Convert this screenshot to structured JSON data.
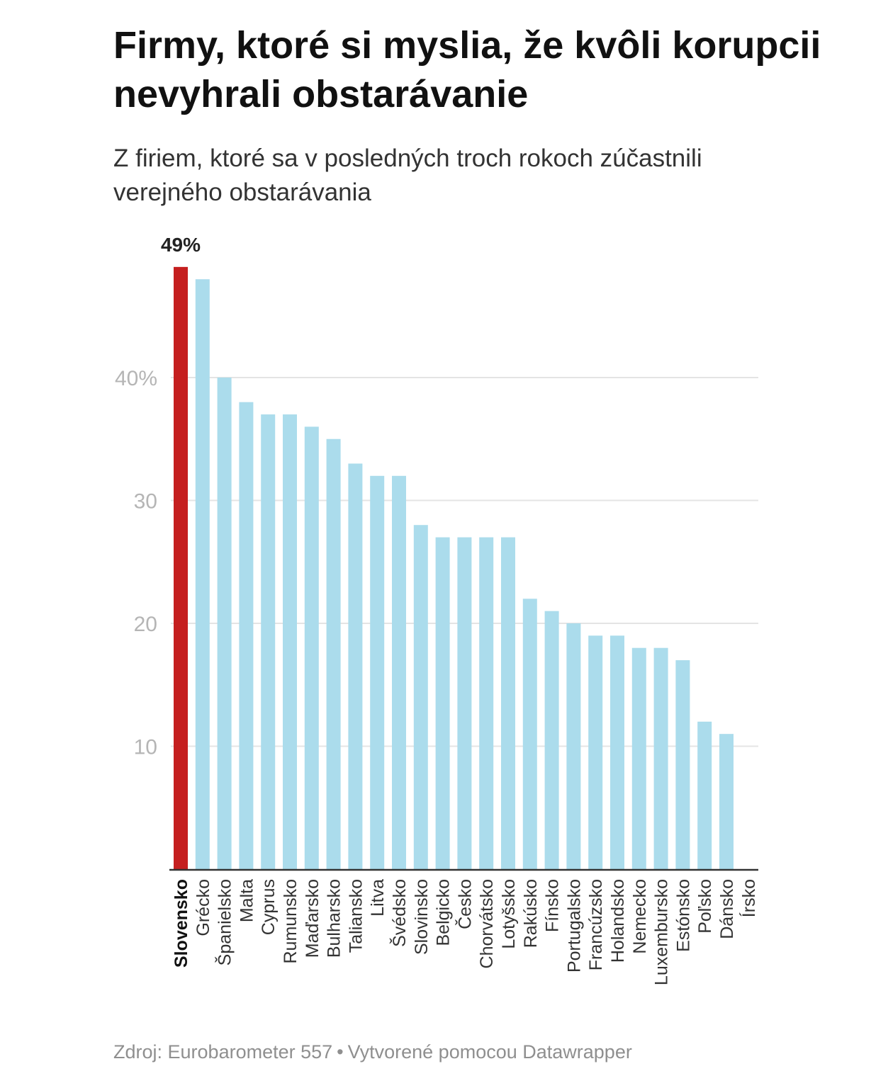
{
  "title": "Firmy, ktoré si myslia, že kvôli korupcii nevyhrali obstarávanie",
  "subtitle": "Z firiem, ktoré sa v posledných troch rokoch zúčastnili verejného obstarávania",
  "footer": {
    "source": "Zdroj: Eurobarometer 557",
    "separator": "•",
    "credit": "Vytvorené pomocou Datawrapper"
  },
  "colors": {
    "highlight": "#c51f1f",
    "bar": "#abdcec",
    "grid": "#e4e4e4",
    "tick_label": "#b5b5b5",
    "axis": "#333333"
  },
  "chart_data": {
    "type": "bar",
    "categories": [
      "Slovensko",
      "Grécko",
      "Španielsko",
      "Malta",
      "Cyprus",
      "Rumunsko",
      "Maďarsko",
      "Bulharsko",
      "Taliansko",
      "Litva",
      "Švédsko",
      "Slovinsko",
      "Belgicko",
      "Česko",
      "Chorvátsko",
      "Lotyšsko",
      "Rakúsko",
      "Fínsko",
      "Portugalsko",
      "Francúzsko",
      "Holandsko",
      "Nemecko",
      "Luxembursko",
      "Estónsko",
      "Poľsko",
      "Dánsko",
      "Írsko"
    ],
    "values": [
      49,
      48,
      40,
      38,
      37,
      37,
      36,
      35,
      33,
      32,
      32,
      28,
      27,
      27,
      27,
      27,
      22,
      21,
      20,
      19,
      19,
      18,
      18,
      17,
      12,
      11,
      0
    ],
    "highlight_index": 0,
    "highlight_label": "49%",
    "yticks": [
      10,
      20,
      30,
      40
    ],
    "ytick_labels": [
      "10",
      "20",
      "30",
      "40%"
    ],
    "ylim": [
      0,
      49
    ],
    "grid": true
  }
}
